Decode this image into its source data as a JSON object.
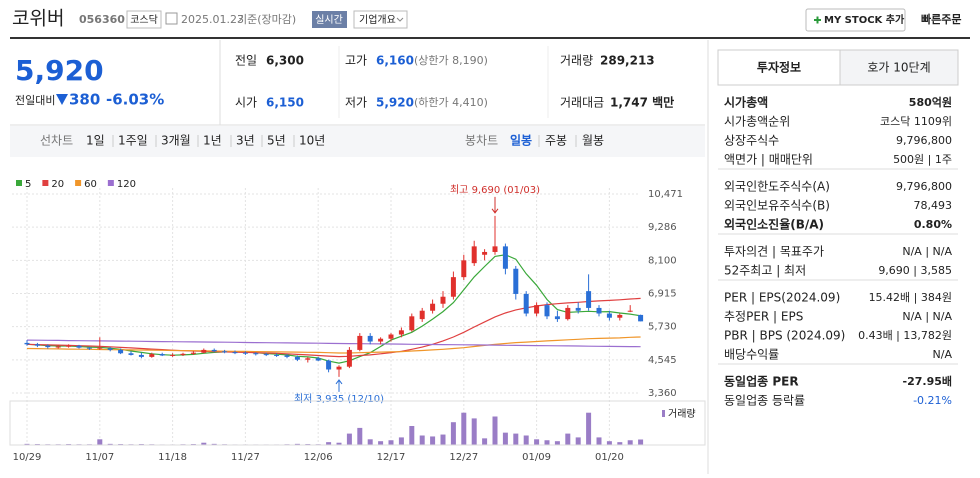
{
  "header": {
    "name": "코위버",
    "code": "056360",
    "market": "코스닥",
    "date": "2025.01.23",
    "basis": "기준(장마감)",
    "realtime": "실시간",
    "overview": "기업개요",
    "my_stock": "MY STOCK 추가",
    "quick_order": "빠른주문"
  },
  "price": {
    "current": "5,920",
    "change_label": "전일대비",
    "change": "380",
    "change_pct": "-6.03%"
  },
  "quote": [
    {
      "label": "전일",
      "value": "6,300"
    },
    {
      "label": "고가",
      "value": "6,160",
      "note": "(상한가 8,190)"
    },
    {
      "label": "거래량",
      "value": "289,213"
    },
    {
      "label": "시가",
      "value": "6,150"
    },
    {
      "label": "저가",
      "value": "5,920",
      "note": "(하한가 4,410)"
    },
    {
      "label": "거래대금",
      "value": "1,747 백만"
    }
  ],
  "periods": [
    "선차트",
    "1일",
    "1주일",
    "3개월",
    "1년",
    "3년",
    "5년",
    "10년"
  ],
  "chart_kinds": [
    "봉차트",
    "일봉",
    "주봉",
    "월봉"
  ],
  "selected_kind": 1,
  "chart_data": [
    {
      "type": "candlestick",
      "categories": [
        "10/29",
        null,
        null,
        null,
        null,
        null,
        null,
        "11/07",
        null,
        null,
        null,
        null,
        null,
        null,
        "11/18",
        null,
        null,
        null,
        null,
        null,
        null,
        "11/27",
        null,
        null,
        null,
        null,
        null,
        null,
        "12/06",
        null,
        null,
        null,
        null,
        null,
        null,
        "12/17",
        null,
        null,
        null,
        null,
        null,
        null,
        "12/27",
        null,
        null,
        null,
        null,
        null,
        null,
        "01/09",
        null,
        null,
        null,
        null,
        null,
        null,
        "01/20",
        null,
        null,
        null
      ],
      "open": [
        5150,
        5100,
        5050,
        5000,
        5020,
        5050,
        4980,
        4950,
        4950,
        4900,
        4780,
        4720,
        4650,
        4750,
        4700,
        4720,
        4760,
        4800,
        4900,
        4850,
        4820,
        4800,
        4780,
        4750,
        4720,
        4700,
        4650,
        4550,
        4600,
        4520,
        4200,
        4300,
        4900,
        5400,
        5200,
        5300,
        5450,
        5600,
        6000,
        6300,
        6550,
        6800,
        7500,
        8000,
        8300,
        8400,
        8600,
        7800,
        6900,
        6200,
        6500,
        6100,
        6000,
        6400,
        7000,
        6400,
        6200,
        6050,
        6300,
        6150
      ],
      "high": [
        5250,
        5150,
        5100,
        5080,
        5100,
        5080,
        5000,
        5350,
        5000,
        4950,
        4850,
        4800,
        4800,
        4800,
        4780,
        4800,
        4850,
        4950,
        4950,
        4900,
        4880,
        4850,
        4820,
        4800,
        4780,
        4750,
        4700,
        4650,
        4650,
        4550,
        4350,
        5000,
        5500,
        5500,
        5350,
        5500,
        5700,
        6200,
        6400,
        6700,
        7000,
        7700,
        8300,
        8800,
        8500,
        9690,
        8700,
        7900,
        7000,
        6600,
        6600,
        6300,
        6500,
        6600,
        7600,
        6500,
        6300,
        6200,
        6500,
        6160
      ],
      "low": [
        5050,
        5000,
        4950,
        4950,
        4980,
        4950,
        4900,
        4900,
        4850,
        4750,
        4700,
        4600,
        4620,
        4680,
        4650,
        4680,
        4720,
        4780,
        4820,
        4780,
        4750,
        4720,
        4700,
        4680,
        4650,
        4600,
        4500,
        4450,
        4500,
        4100,
        3935,
        4250,
        4850,
        5100,
        5100,
        5200,
        5350,
        5550,
        5900,
        6200,
        6400,
        6700,
        7400,
        7900,
        8100,
        8300,
        7600,
        6700,
        6100,
        6100,
        6000,
        5900,
        5950,
        6200,
        6300,
        6100,
        5950,
        5950,
        6250,
        5920
      ],
      "close": [
        5100,
        5050,
        5000,
        5020,
        5050,
        4980,
        4950,
        4980,
        4900,
        4780,
        4720,
        4650,
        4750,
        4700,
        4720,
        4760,
        4800,
        4900,
        4850,
        4820,
        4800,
        4780,
        4750,
        4720,
        4700,
        4650,
        4550,
        4600,
        4520,
        4200,
        4300,
        4900,
        5400,
        5200,
        5300,
        5450,
        5600,
        6100,
        6300,
        6550,
        6800,
        7500,
        8100,
        8600,
        8400,
        8600,
        7800,
        6900,
        6200,
        6500,
        6100,
        6000,
        6400,
        6300,
        6400,
        6200,
        6050,
        6150,
        6300,
        5920
      ],
      "up_color": "#e0302c",
      "down_color": "#2a6fd6",
      "series": [
        {
          "name": "5",
          "color": "#3aa83a",
          "values": [
            5100,
            5080,
            5050,
            5040,
            5040,
            5020,
            5000,
            4990,
            4960,
            4920,
            4860,
            4810,
            4760,
            4730,
            4710,
            4720,
            4740,
            4780,
            4810,
            4830,
            4830,
            4830,
            4800,
            4770,
            4750,
            4720,
            4670,
            4650,
            4610,
            4500,
            4430,
            4510,
            4660,
            4800,
            5020,
            5250,
            5390,
            5530,
            5750,
            6000,
            6270,
            6590,
            7050,
            7510,
            7880,
            8240,
            8300,
            8140,
            7620,
            7210,
            6700,
            6340,
            6240,
            6260,
            6280,
            6260,
            6270,
            6220,
            6180,
            6120
          ]
        },
        {
          "name": "20",
          "color": "#e04040",
          "values": [
            5100,
            5090,
            5080,
            5070,
            5060,
            5050,
            5040,
            5030,
            5010,
            4990,
            4970,
            4950,
            4930,
            4910,
            4890,
            4870,
            4860,
            4850,
            4840,
            4830,
            4820,
            4810,
            4800,
            4790,
            4780,
            4760,
            4740,
            4720,
            4700,
            4680,
            4660,
            4670,
            4700,
            4720,
            4760,
            4800,
            4850,
            4920,
            5000,
            5100,
            5220,
            5360,
            5530,
            5720,
            5900,
            6080,
            6220,
            6330,
            6400,
            6470,
            6520,
            6550,
            6580,
            6600,
            6630,
            6650,
            6670,
            6690,
            6720,
            6740
          ]
        },
        {
          "name": "60",
          "color": "#f0962a",
          "values": [
            4950,
            4945,
            4940,
            4935,
            4930,
            4925,
            4920,
            4915,
            4910,
            4905,
            4900,
            4895,
            4890,
            4885,
            4880,
            4875,
            4870,
            4865,
            4860,
            4855,
            4850,
            4845,
            4840,
            4835,
            4830,
            4825,
            4820,
            4815,
            4810,
            4800,
            4790,
            4790,
            4800,
            4810,
            4820,
            4830,
            4840,
            4860,
            4880,
            4900,
            4920,
            4950,
            4980,
            5020,
            5060,
            5100,
            5130,
            5160,
            5180,
            5200,
            5220,
            5240,
            5260,
            5280,
            5300,
            5310,
            5320,
            5330,
            5350,
            5360
          ]
        },
        {
          "name": "120",
          "color": "#9b6fd0",
          "values": [
            5250,
            5246,
            5242,
            5238,
            5234,
            5230,
            5226,
            5222,
            5218,
            5214,
            5210,
            5206,
            5202,
            5198,
            5194,
            5190,
            5186,
            5182,
            5178,
            5174,
            5170,
            5166,
            5162,
            5158,
            5154,
            5150,
            5146,
            5142,
            5138,
            5134,
            5130,
            5126,
            5122,
            5118,
            5114,
            5110,
            5106,
            5102,
            5098,
            5094,
            5090,
            5086,
            5082,
            5078,
            5074,
            5070,
            5066,
            5062,
            5058,
            5054,
            5050,
            5046,
            5042,
            5038,
            5034,
            5030,
            5026,
            5022,
            5018,
            5014
          ]
        }
      ],
      "ylim": [
        3360,
        10471
      ],
      "yticks": [
        {
          "value": 10471,
          "label": "10,471"
        },
        {
          "value": 9286,
          "label": "9,286"
        },
        {
          "value": 8100,
          "label": "8,100"
        },
        {
          "value": 6915,
          "label": "6,915"
        },
        {
          "value": 5730,
          "label": "5,730"
        },
        {
          "value": 4545,
          "label": "4,545"
        },
        {
          "value": 3360,
          "label": "3,360"
        }
      ],
      "grid": true,
      "max_label": "최고 9,690 (01/03)",
      "min_label": "최저 3,935 (12/10)"
    },
    {
      "type": "bar",
      "name": "거래량",
      "color": "#9a7dc6",
      "ylim": [
        0,
        2000000
      ],
      "values": [
        60000,
        50000,
        40000,
        40000,
        50000,
        40000,
        40000,
        300000,
        60000,
        50000,
        40000,
        50000,
        40000,
        30000,
        30000,
        40000,
        50000,
        120000,
        60000,
        40000,
        30000,
        30000,
        30000,
        30000,
        30000,
        40000,
        60000,
        50000,
        40000,
        150000,
        120000,
        600000,
        900000,
        300000,
        200000,
        250000,
        400000,
        1000000,
        500000,
        450000,
        550000,
        1200000,
        1700000,
        1400000,
        350000,
        1500000,
        650000,
        600000,
        500000,
        300000,
        250000,
        200000,
        600000,
        400000,
        1700000,
        400000,
        200000,
        150000,
        250000,
        289213
      ]
    }
  ],
  "info": {
    "tabs": [
      "투자정보",
      "호가 10단계"
    ],
    "sections": [
      [
        {
          "label": "시가총액",
          "value": "580억원",
          "strong": true
        },
        {
          "label": "시가총액순위",
          "value": "코스닥 1109위"
        },
        {
          "label": "상장주식수",
          "value": "9,796,800"
        },
        {
          "label": "액면가 | 매매단위",
          "value": "500원 | 1주"
        }
      ],
      [
        {
          "label": "외국인한도주식수(A)",
          "value": "9,796,800"
        },
        {
          "label": "외국인보유주식수(B)",
          "value": "78,493"
        },
        {
          "label": "외국인소진율(B/A)",
          "value": "0.80%",
          "strong": true
        }
      ],
      [
        {
          "label": "투자의견 | 목표주가",
          "value": "N/A | N/A"
        },
        {
          "label": "52주최고 | 최저",
          "value": "9,690 | 3,585"
        }
      ],
      [
        {
          "label": "PER | EPS(2024.09)",
          "value": "15.42배 | 384원"
        },
        {
          "label": "추정PER | EPS",
          "value": "N/A | N/A"
        },
        {
          "label": "PBR | BPS (2024.09)",
          "value": "0.43배 | 13,782원"
        },
        {
          "label": "배당수익률",
          "value": "N/A"
        }
      ],
      [
        {
          "label": "동일업종 PER",
          "value": "-27.95배",
          "strong": true
        },
        {
          "label": "동일업종 등락률",
          "value": "-0.21%",
          "color": "#1c5fd4"
        }
      ]
    ]
  }
}
